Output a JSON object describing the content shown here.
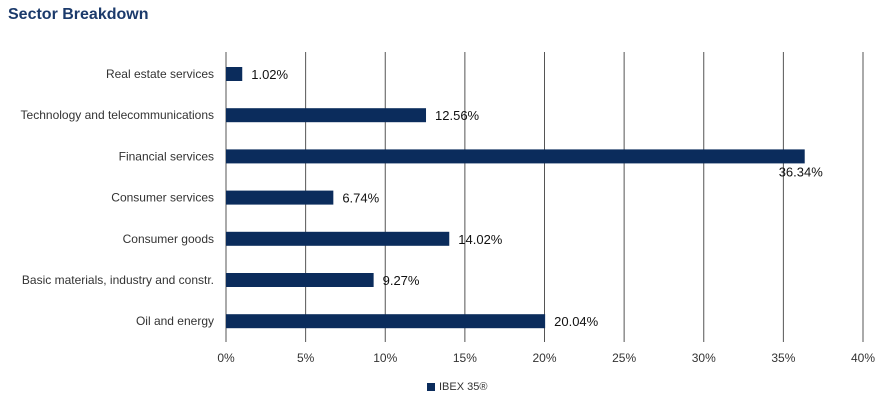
{
  "title": "Sector Breakdown",
  "colors": {
    "bar": "#0b2c5c",
    "grid": "#555555",
    "title": "#1b3a6b"
  },
  "chart_data": {
    "type": "bar",
    "orientation": "horizontal",
    "title": "Sector Breakdown",
    "categories": [
      "Real estate services",
      "Technology and telecommunications",
      "Financial services",
      "Consumer services",
      "Consumer goods",
      "Basic materials, industry and constr.",
      "Oil and energy"
    ],
    "series": [
      {
        "name": "IBEX 35®",
        "values": [
          1.02,
          12.56,
          36.34,
          6.74,
          14.02,
          9.27,
          20.04
        ],
        "labels": [
          "1.02%",
          "12.56%",
          "36.34%",
          "6.74%",
          "14.02%",
          "9.27%",
          "20.04%"
        ]
      }
    ],
    "xlim": [
      0,
      40
    ],
    "xticks": [
      0,
      5,
      10,
      15,
      20,
      25,
      30,
      35,
      40
    ],
    "xtick_labels": [
      "0%",
      "5%",
      "10%",
      "15%",
      "20%",
      "25%",
      "30%",
      "35%",
      "40%"
    ],
    "grid": "vertical",
    "legend_position": "bottom"
  }
}
